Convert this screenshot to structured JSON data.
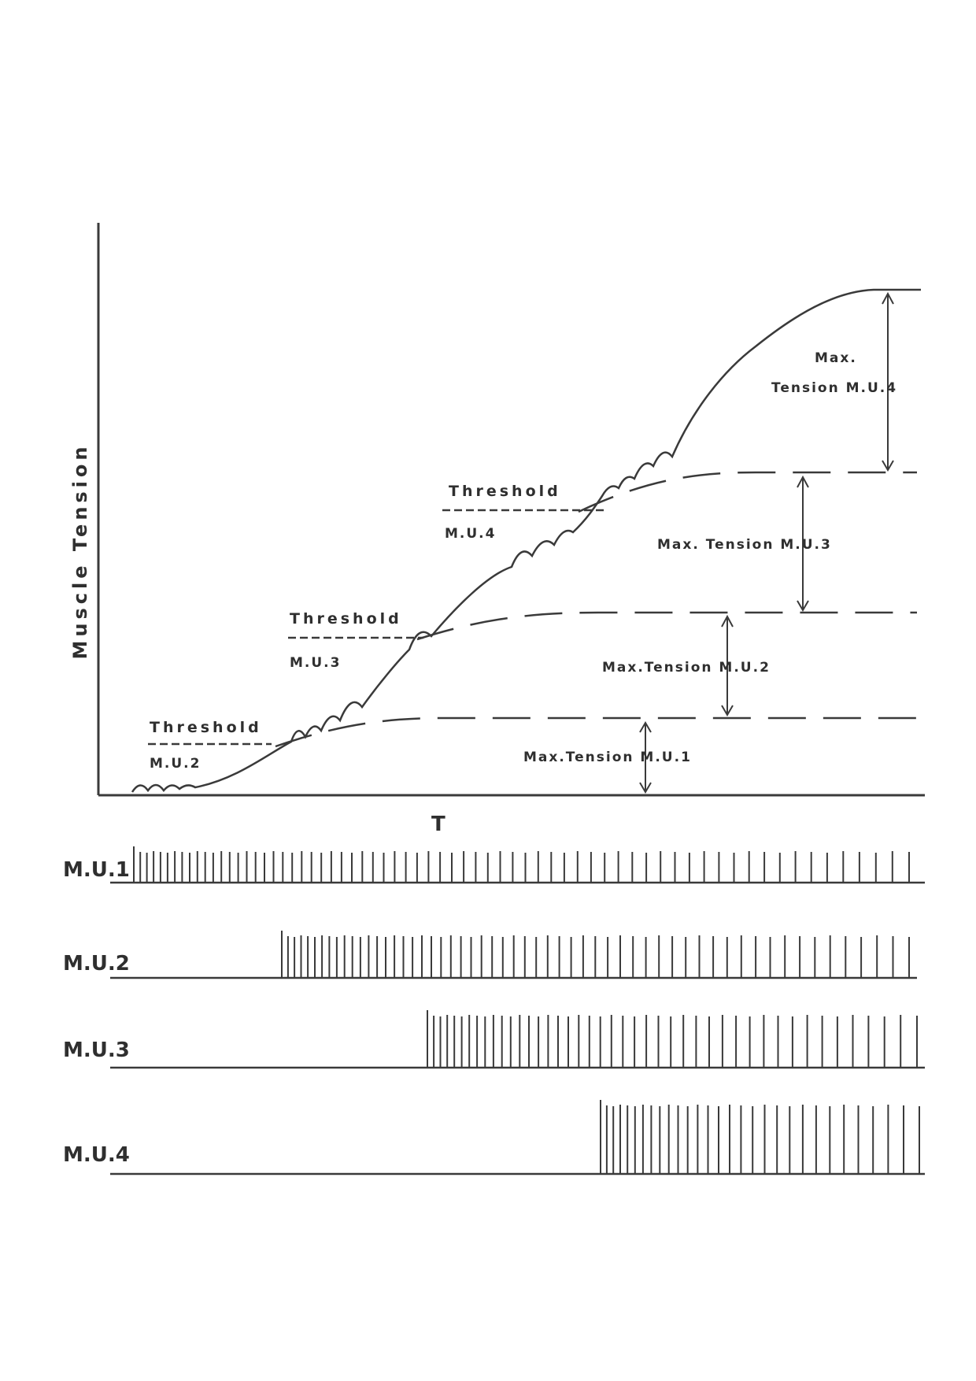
{
  "figure": {
    "y_axis_label": "Muscle Tension",
    "x_axis_label": "T",
    "thresholds": [
      {
        "line1": "Threshold",
        "line2": "M.U.2"
      },
      {
        "line1": "Threshold",
        "line2": "M.U.3"
      },
      {
        "line1": "Threshold",
        "line2": "M.U.4"
      }
    ],
    "max_tension_labels": {
      "mu1": "Max.Tension  M.U.1",
      "mu2": "Max.Tension  M.U.2",
      "mu3": "Max.  Tension  M.U.3",
      "mu4_line1": "Max.",
      "mu4_line2": "Tension  M.U.4"
    },
    "spike_trains": [
      {
        "label": "M.U.1",
        "spikes": 68
      },
      {
        "label": "M.U.2",
        "spikes": 57
      },
      {
        "label": "M.U.3",
        "spikes": 44
      },
      {
        "label": "M.U.4",
        "spikes": 30
      }
    ]
  }
}
